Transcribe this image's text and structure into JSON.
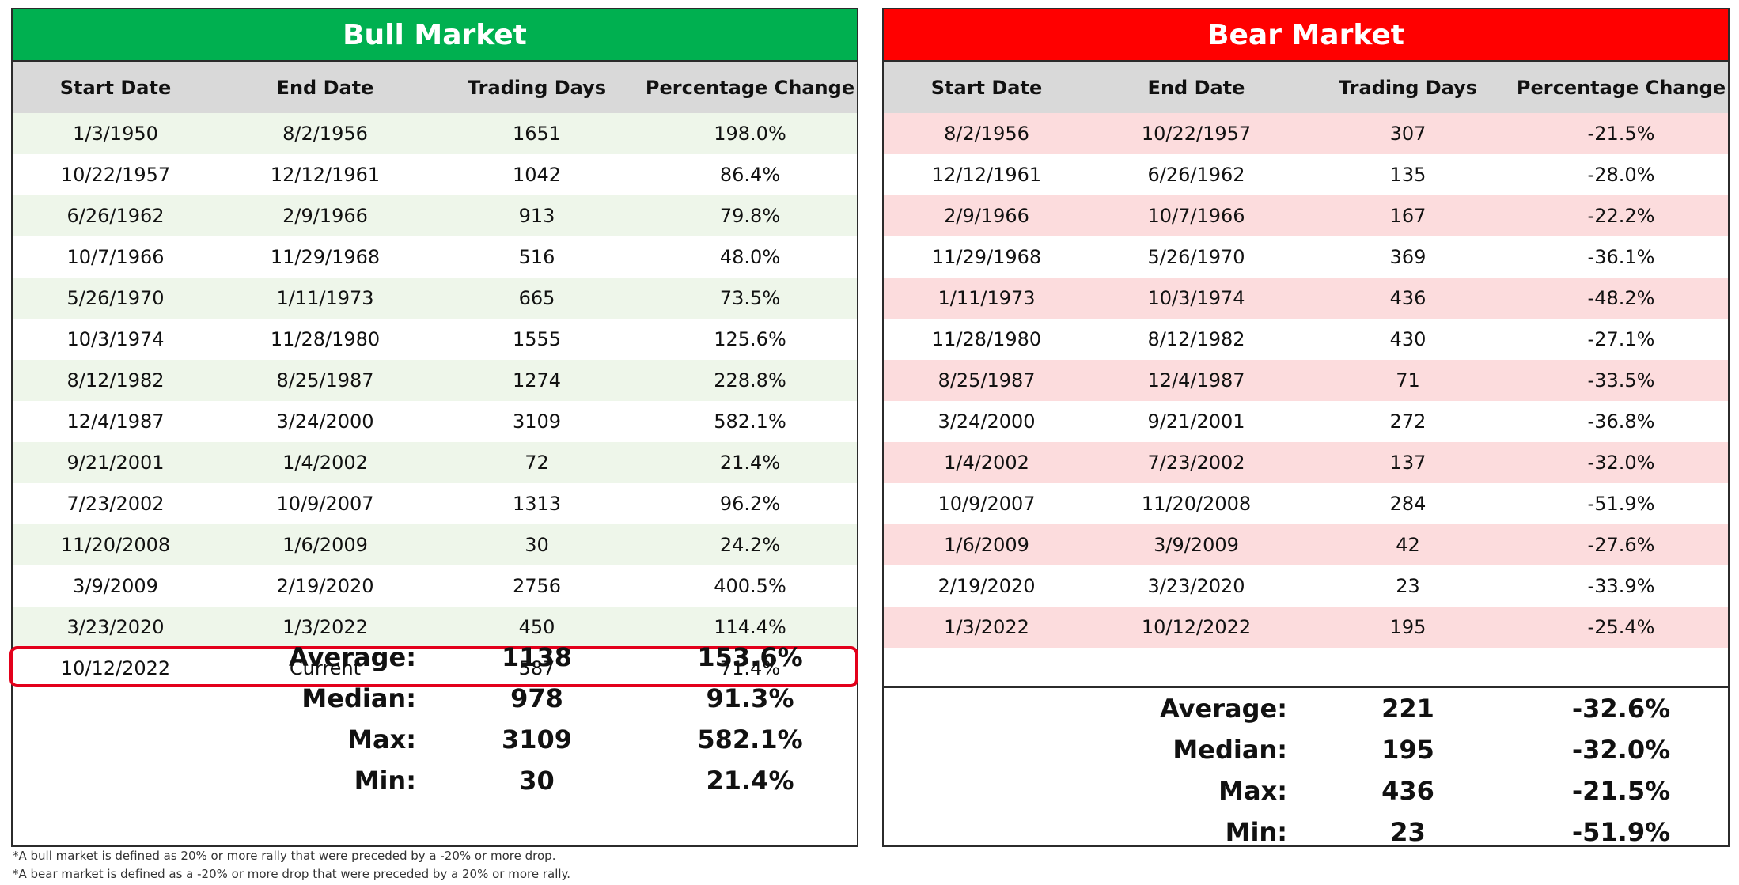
{
  "bull": {
    "title": "Bull Market",
    "color": "#00b050",
    "headers": [
      "Start Date",
      "End Date",
      "Trading Days",
      "Percentage Change"
    ],
    "rows": [
      [
        "1/3/1950",
        "8/2/1956",
        "1651",
        "198.0%"
      ],
      [
        "10/22/1957",
        "12/12/1961",
        "1042",
        "86.4%"
      ],
      [
        "6/26/1962",
        "2/9/1966",
        "913",
        "79.8%"
      ],
      [
        "10/7/1966",
        "11/29/1968",
        "516",
        "48.0%"
      ],
      [
        "5/26/1970",
        "1/11/1973",
        "665",
        "73.5%"
      ],
      [
        "10/3/1974",
        "11/28/1980",
        "1555",
        "125.6%"
      ],
      [
        "8/12/1982",
        "8/25/1987",
        "1274",
        "228.8%"
      ],
      [
        "12/4/1987",
        "3/24/2000",
        "3109",
        "582.1%"
      ],
      [
        "9/21/2001",
        "1/4/2002",
        "72",
        "21.4%"
      ],
      [
        "7/23/2002",
        "10/9/2007",
        "1313",
        "96.2%"
      ],
      [
        "11/20/2008",
        "1/6/2009",
        "30",
        "24.2%"
      ],
      [
        "3/9/2009",
        "2/19/2020",
        "2756",
        "400.5%"
      ],
      [
        "3/23/2020",
        "1/3/2022",
        "450",
        "114.4%"
      ]
    ],
    "current": [
      "10/12/2022",
      "Current",
      "587",
      "71.4%"
    ],
    "stats": [
      [
        "Average:",
        "1138",
        "153.6%"
      ],
      [
        "Median:",
        "978",
        "91.3%"
      ],
      [
        "Max:",
        "3109",
        "582.1%"
      ],
      [
        "Min:",
        "30",
        "21.4%"
      ]
    ]
  },
  "bear": {
    "title": "Bear Market",
    "color": "#ff0000",
    "headers": [
      "Start Date",
      "End Date",
      "Trading Days",
      "Percentage Change"
    ],
    "rows": [
      [
        "8/2/1956",
        "10/22/1957",
        "307",
        "-21.5%"
      ],
      [
        "12/12/1961",
        "6/26/1962",
        "135",
        "-28.0%"
      ],
      [
        "2/9/1966",
        "10/7/1966",
        "167",
        "-22.2%"
      ],
      [
        "11/29/1968",
        "5/26/1970",
        "369",
        "-36.1%"
      ],
      [
        "1/11/1973",
        "10/3/1974",
        "436",
        "-48.2%"
      ],
      [
        "11/28/1980",
        "8/12/1982",
        "430",
        "-27.1%"
      ],
      [
        "8/25/1987",
        "12/4/1987",
        "71",
        "-33.5%"
      ],
      [
        "3/24/2000",
        "9/21/2001",
        "272",
        "-36.8%"
      ],
      [
        "1/4/2002",
        "7/23/2002",
        "137",
        "-32.0%"
      ],
      [
        "10/9/2007",
        "11/20/2008",
        "284",
        "-51.9%"
      ],
      [
        "1/6/2009",
        "3/9/2009",
        "42",
        "-27.6%"
      ],
      [
        "2/19/2020",
        "3/23/2020",
        "23",
        "-33.9%"
      ],
      [
        "1/3/2022",
        "10/12/2022",
        "195",
        "-25.4%"
      ]
    ],
    "stats": [
      [
        "Average:",
        "221",
        "-32.6%"
      ],
      [
        "Median:",
        "195",
        "-32.0%"
      ],
      [
        "Max:",
        "436",
        "-21.5%"
      ],
      [
        "Min:",
        "23",
        "-51.9%"
      ]
    ]
  },
  "footnotes": [
    "*A bull market is defined as 20% or more rally that were preceded by a -20% or more drop.",
    "*A bear market is defined as a -20% or more drop that were preceded by a 20% or more rally."
  ]
}
